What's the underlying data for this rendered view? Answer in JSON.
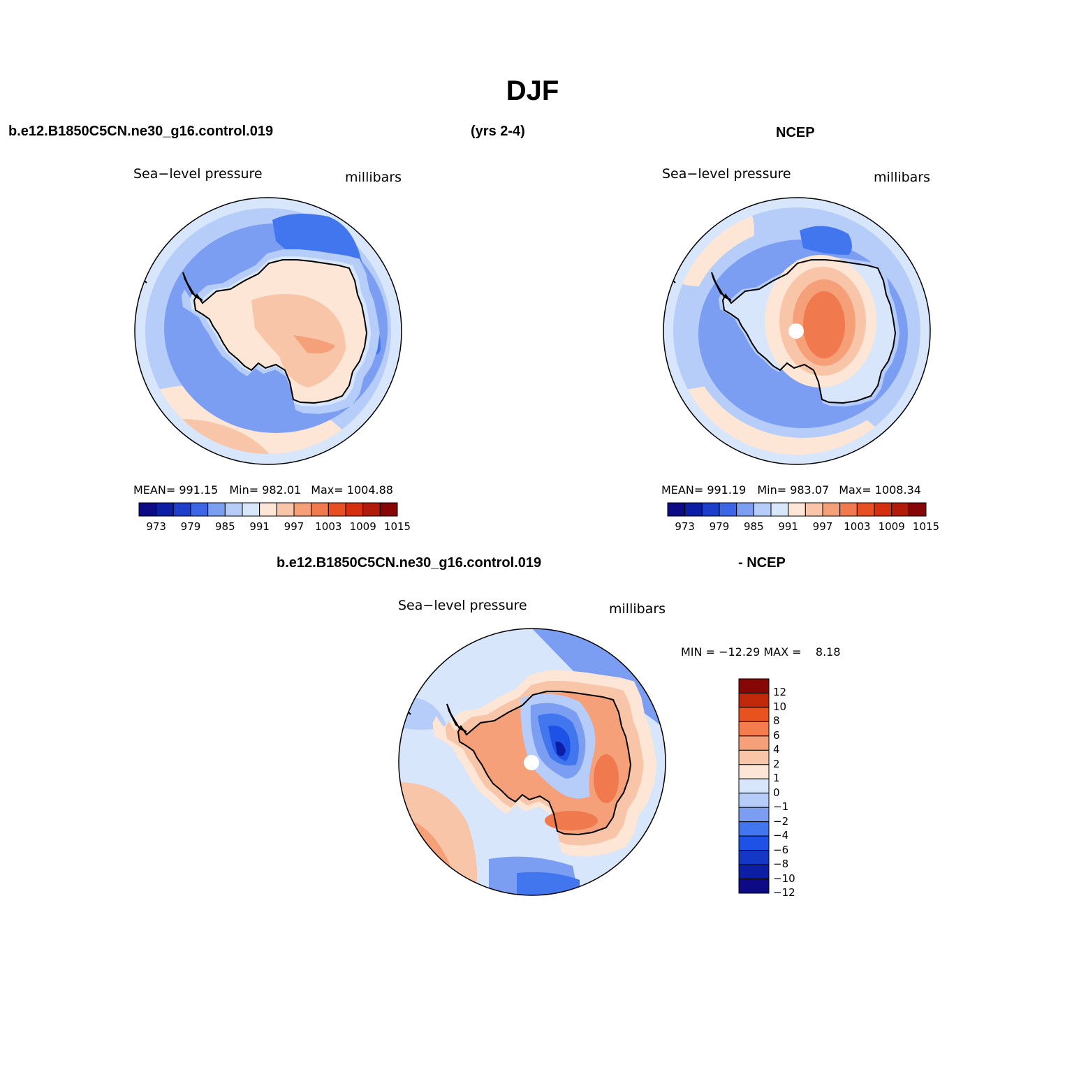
{
  "title": "DJF",
  "header": {
    "case": "b.e12.B1850C5CN.ne30_g16.control.019",
    "years": "(yrs 2-4)",
    "obs": "NCEP"
  },
  "diff_header": {
    "case": "b.e12.B1850C5CN.ne30_g16.control.019",
    "obs": "- NCEP"
  },
  "panels": [
    {
      "id": "model",
      "variable": "Sea−level pressure",
      "units": "millibars",
      "stats": {
        "mean": "MEAN= 991.15",
        "min": "Min= 982.01",
        "max": "Max= 1004.88"
      }
    },
    {
      "id": "ncep",
      "variable": "Sea−level pressure",
      "units": "millibars",
      "stats": {
        "mean": "MEAN= 991.19",
        "min": "Min= 983.07",
        "max": "Max= 1008.34"
      }
    },
    {
      "id": "difference",
      "variable": "Sea−level pressure",
      "units": "millibars",
      "stats": {
        "minmax": "MIN = −12.29 MAX =    8.18"
      }
    }
  ],
  "colorbar_abs": {
    "colors": [
      "#0d0a86",
      "#0c1ea3",
      "#1e3fcc",
      "#3d66e6",
      "#7b9ef2",
      "#b5cdf8",
      "#d8e6fb",
      "#fde6d6",
      "#f9c5a8",
      "#f6a07a",
      "#f07a4e",
      "#e84f23",
      "#d52f10",
      "#b21b0a",
      "#870606"
    ],
    "labels": [
      "973",
      "979",
      "985",
      "991",
      "997",
      "1003",
      "1009",
      "1015"
    ]
  },
  "colorbar_diff": {
    "colors": [
      "#0d0a86",
      "#0c1ea3",
      "#1537c6",
      "#1e52e6",
      "#4276ee",
      "#7b9ef2",
      "#b5cdf8",
      "#d8e6fb",
      "#fde6d6",
      "#f9c5a8",
      "#f6a07a",
      "#f57c4c",
      "#e8521f",
      "#bf2808",
      "#870606"
    ],
    "labels": [
      "12",
      "10",
      "8",
      "6",
      "4",
      "2",
      "1",
      "0",
      "−1",
      "−2",
      "−4",
      "−6",
      "−8",
      "−10",
      "−12"
    ]
  },
  "map_colors": {
    "outer_warm": "#fde6d6",
    "warm2": "#f9c5a8",
    "warm3": "#f6a07a",
    "warm4": "#f07a4e",
    "cool1": "#d8e6fb",
    "cool2": "#b5cdf8",
    "cool3": "#7b9ef2",
    "cool4": "#4276ee",
    "deep1": "#1e52e6",
    "deep2": "#0c1ea3"
  }
}
